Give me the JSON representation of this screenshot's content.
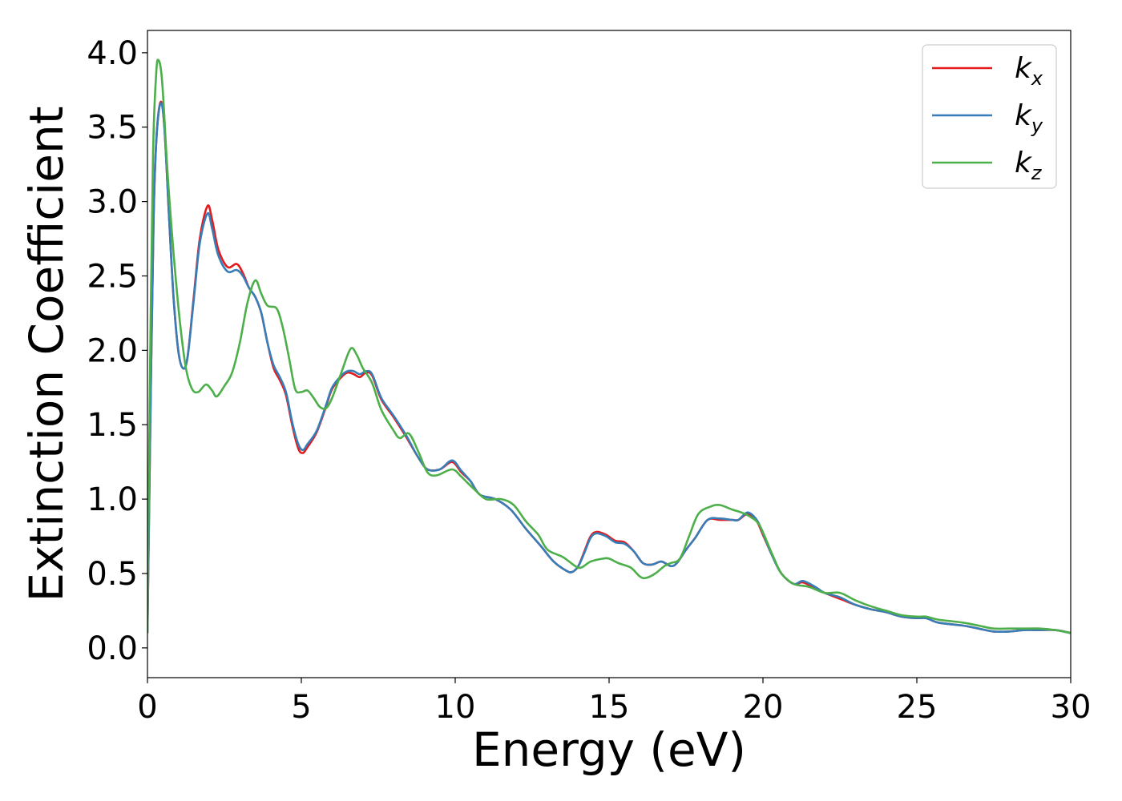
{
  "chart_data": {
    "type": "line",
    "title": "",
    "xlabel": "Energy (eV)",
    "ylabel": "Extinction Coefficient",
    "xlim": [
      0,
      30
    ],
    "ylim": [
      -0.2,
      4.15
    ],
    "xticks": [
      0,
      5,
      10,
      15,
      20,
      25,
      30
    ],
    "xtick_labels": [
      "0",
      "5",
      "10",
      "15",
      "20",
      "25",
      "30"
    ],
    "yticks": [
      0.0,
      0.5,
      1.0,
      1.5,
      2.0,
      2.5,
      3.0,
      3.5,
      4.0
    ],
    "ytick_labels": [
      "0.0",
      "0.5",
      "1.0",
      "1.5",
      "2.0",
      "2.5",
      "3.0",
      "3.5",
      "4.0"
    ],
    "grid": false,
    "legend_position": "top-right",
    "series": [
      {
        "name": "k_x",
        "label_main": "k",
        "label_sub": "x",
        "color": "#e41a1c",
        "points": [
          [
            0,
            0.1
          ],
          [
            0.1,
            1.6
          ],
          [
            0.2,
            2.9
          ],
          [
            0.3,
            3.45
          ],
          [
            0.43,
            3.67
          ],
          [
            0.55,
            3.5
          ],
          [
            0.7,
            2.9
          ],
          [
            0.85,
            2.35
          ],
          [
            1.0,
            2.0
          ],
          [
            1.15,
            1.88
          ],
          [
            1.3,
            1.95
          ],
          [
            1.5,
            2.35
          ],
          [
            1.7,
            2.75
          ],
          [
            1.95,
            2.97
          ],
          [
            2.1,
            2.88
          ],
          [
            2.3,
            2.68
          ],
          [
            2.6,
            2.56
          ],
          [
            2.9,
            2.58
          ],
          [
            3.1,
            2.52
          ],
          [
            3.3,
            2.42
          ],
          [
            3.5,
            2.36
          ],
          [
            3.7,
            2.25
          ],
          [
            3.9,
            2.05
          ],
          [
            4.1,
            1.88
          ],
          [
            4.3,
            1.8
          ],
          [
            4.5,
            1.7
          ],
          [
            4.7,
            1.5
          ],
          [
            4.9,
            1.34
          ],
          [
            5.05,
            1.31
          ],
          [
            5.2,
            1.35
          ],
          [
            5.5,
            1.45
          ],
          [
            5.8,
            1.62
          ],
          [
            6.0,
            1.74
          ],
          [
            6.3,
            1.82
          ],
          [
            6.5,
            1.85
          ],
          [
            6.7,
            1.84
          ],
          [
            6.9,
            1.82
          ],
          [
            7.1,
            1.85
          ],
          [
            7.3,
            1.83
          ],
          [
            7.6,
            1.67
          ],
          [
            8.0,
            1.55
          ],
          [
            8.4,
            1.42
          ],
          [
            8.8,
            1.28
          ],
          [
            9.1,
            1.2
          ],
          [
            9.5,
            1.2
          ],
          [
            9.9,
            1.25
          ],
          [
            10.2,
            1.18
          ],
          [
            10.5,
            1.12
          ],
          [
            10.8,
            1.03
          ],
          [
            11.3,
            1.0
          ],
          [
            11.8,
            0.93
          ],
          [
            12.3,
            0.8
          ],
          [
            12.8,
            0.68
          ],
          [
            13.2,
            0.58
          ],
          [
            13.6,
            0.52
          ],
          [
            13.8,
            0.51
          ],
          [
            14.0,
            0.55
          ],
          [
            14.2,
            0.65
          ],
          [
            14.4,
            0.75
          ],
          [
            14.6,
            0.78
          ],
          [
            14.9,
            0.76
          ],
          [
            15.2,
            0.72
          ],
          [
            15.5,
            0.71
          ],
          [
            15.8,
            0.65
          ],
          [
            16.1,
            0.57
          ],
          [
            16.4,
            0.56
          ],
          [
            16.7,
            0.58
          ],
          [
            17.0,
            0.55
          ],
          [
            17.2,
            0.57
          ],
          [
            17.5,
            0.66
          ],
          [
            17.8,
            0.74
          ],
          [
            18.2,
            0.86
          ],
          [
            18.6,
            0.86
          ],
          [
            19.0,
            0.86
          ],
          [
            19.2,
            0.86
          ],
          [
            19.5,
            0.9
          ],
          [
            19.8,
            0.85
          ],
          [
            20.0,
            0.76
          ],
          [
            20.3,
            0.62
          ],
          [
            20.6,
            0.5
          ],
          [
            21.0,
            0.43
          ],
          [
            21.3,
            0.44
          ],
          [
            21.7,
            0.4
          ],
          [
            22.0,
            0.37
          ],
          [
            22.5,
            0.33
          ],
          [
            23.0,
            0.29
          ],
          [
            23.5,
            0.26
          ],
          [
            24.0,
            0.24
          ],
          [
            24.5,
            0.21
          ],
          [
            25.0,
            0.2
          ],
          [
            25.3,
            0.2
          ],
          [
            25.7,
            0.17
          ],
          [
            26.5,
            0.15
          ],
          [
            27.0,
            0.13
          ],
          [
            27.5,
            0.11
          ],
          [
            28.0,
            0.11
          ],
          [
            28.5,
            0.12
          ],
          [
            29.0,
            0.12
          ],
          [
            29.5,
            0.12
          ],
          [
            30.0,
            0.1
          ]
        ]
      },
      {
        "name": "k_y",
        "label_main": "k",
        "label_sub": "y",
        "color": "#377eb8",
        "points": [
          [
            0,
            0.1
          ],
          [
            0.1,
            1.6
          ],
          [
            0.2,
            2.9
          ],
          [
            0.3,
            3.45
          ],
          [
            0.43,
            3.66
          ],
          [
            0.55,
            3.5
          ],
          [
            0.7,
            2.9
          ],
          [
            0.85,
            2.35
          ],
          [
            1.0,
            2.0
          ],
          [
            1.15,
            1.88
          ],
          [
            1.3,
            1.95
          ],
          [
            1.5,
            2.33
          ],
          [
            1.7,
            2.72
          ],
          [
            1.95,
            2.92
          ],
          [
            2.1,
            2.82
          ],
          [
            2.3,
            2.64
          ],
          [
            2.6,
            2.53
          ],
          [
            2.9,
            2.54
          ],
          [
            3.1,
            2.5
          ],
          [
            3.3,
            2.42
          ],
          [
            3.5,
            2.36
          ],
          [
            3.7,
            2.25
          ],
          [
            3.9,
            2.05
          ],
          [
            4.1,
            1.9
          ],
          [
            4.3,
            1.82
          ],
          [
            4.5,
            1.72
          ],
          [
            4.7,
            1.52
          ],
          [
            4.9,
            1.37
          ],
          [
            5.05,
            1.33
          ],
          [
            5.2,
            1.37
          ],
          [
            5.5,
            1.46
          ],
          [
            5.8,
            1.63
          ],
          [
            6.0,
            1.75
          ],
          [
            6.3,
            1.83
          ],
          [
            6.5,
            1.86
          ],
          [
            6.7,
            1.86
          ],
          [
            6.9,
            1.84
          ],
          [
            7.1,
            1.86
          ],
          [
            7.3,
            1.84
          ],
          [
            7.6,
            1.68
          ],
          [
            8.0,
            1.56
          ],
          [
            8.4,
            1.43
          ],
          [
            8.8,
            1.28
          ],
          [
            9.1,
            1.2
          ],
          [
            9.5,
            1.2
          ],
          [
            9.9,
            1.26
          ],
          [
            10.2,
            1.19
          ],
          [
            10.5,
            1.12
          ],
          [
            10.8,
            1.03
          ],
          [
            11.3,
            1.0
          ],
          [
            11.8,
            0.93
          ],
          [
            12.3,
            0.8
          ],
          [
            12.8,
            0.68
          ],
          [
            13.2,
            0.58
          ],
          [
            13.6,
            0.52
          ],
          [
            13.8,
            0.51
          ],
          [
            14.0,
            0.55
          ],
          [
            14.2,
            0.64
          ],
          [
            14.4,
            0.74
          ],
          [
            14.6,
            0.77
          ],
          [
            14.9,
            0.75
          ],
          [
            15.2,
            0.71
          ],
          [
            15.5,
            0.7
          ],
          [
            15.8,
            0.65
          ],
          [
            16.1,
            0.57
          ],
          [
            16.4,
            0.56
          ],
          [
            16.7,
            0.58
          ],
          [
            17.0,
            0.55
          ],
          [
            17.2,
            0.57
          ],
          [
            17.5,
            0.66
          ],
          [
            17.8,
            0.74
          ],
          [
            18.2,
            0.86
          ],
          [
            18.6,
            0.87
          ],
          [
            19.0,
            0.86
          ],
          [
            19.2,
            0.86
          ],
          [
            19.5,
            0.91
          ],
          [
            19.8,
            0.86
          ],
          [
            20.0,
            0.77
          ],
          [
            20.3,
            0.62
          ],
          [
            20.6,
            0.5
          ],
          [
            21.0,
            0.43
          ],
          [
            21.3,
            0.45
          ],
          [
            21.7,
            0.41
          ],
          [
            22.0,
            0.37
          ],
          [
            22.5,
            0.34
          ],
          [
            23.0,
            0.29
          ],
          [
            23.5,
            0.26
          ],
          [
            24.0,
            0.24
          ],
          [
            24.5,
            0.21
          ],
          [
            25.0,
            0.2
          ],
          [
            25.3,
            0.2
          ],
          [
            25.7,
            0.17
          ],
          [
            26.5,
            0.15
          ],
          [
            27.0,
            0.13
          ],
          [
            27.5,
            0.11
          ],
          [
            28.0,
            0.11
          ],
          [
            28.5,
            0.12
          ],
          [
            29.0,
            0.12
          ],
          [
            29.5,
            0.12
          ],
          [
            30.0,
            0.1
          ]
        ]
      },
      {
        "name": "k_z",
        "label_main": "k",
        "label_sub": "z",
        "color": "#4daf4a",
        "points": [
          [
            0,
            0.1
          ],
          [
            0.08,
            1.8
          ],
          [
            0.18,
            3.3
          ],
          [
            0.28,
            3.85
          ],
          [
            0.36,
            3.95
          ],
          [
            0.48,
            3.8
          ],
          [
            0.65,
            3.2
          ],
          [
            0.85,
            2.65
          ],
          [
            1.05,
            2.2
          ],
          [
            1.25,
            1.88
          ],
          [
            1.45,
            1.74
          ],
          [
            1.65,
            1.72
          ],
          [
            1.9,
            1.77
          ],
          [
            2.1,
            1.73
          ],
          [
            2.25,
            1.69
          ],
          [
            2.5,
            1.76
          ],
          [
            2.75,
            1.85
          ],
          [
            3.0,
            2.05
          ],
          [
            3.25,
            2.32
          ],
          [
            3.5,
            2.47
          ],
          [
            3.7,
            2.38
          ],
          [
            3.9,
            2.3
          ],
          [
            4.2,
            2.28
          ],
          [
            4.4,
            2.15
          ],
          [
            4.6,
            1.95
          ],
          [
            4.8,
            1.74
          ],
          [
            5.0,
            1.72
          ],
          [
            5.2,
            1.73
          ],
          [
            5.4,
            1.68
          ],
          [
            5.6,
            1.62
          ],
          [
            5.8,
            1.61
          ],
          [
            6.0,
            1.68
          ],
          [
            6.3,
            1.85
          ],
          [
            6.6,
            2.01
          ],
          [
            6.8,
            1.97
          ],
          [
            7.0,
            1.88
          ],
          [
            7.3,
            1.78
          ],
          [
            7.6,
            1.6
          ],
          [
            8.0,
            1.46
          ],
          [
            8.2,
            1.41
          ],
          [
            8.5,
            1.44
          ],
          [
            8.8,
            1.32
          ],
          [
            9.1,
            1.18
          ],
          [
            9.4,
            1.16
          ],
          [
            9.9,
            1.2
          ],
          [
            10.2,
            1.15
          ],
          [
            10.6,
            1.07
          ],
          [
            11.0,
            1.0
          ],
          [
            11.5,
            1.0
          ],
          [
            11.9,
            0.96
          ],
          [
            12.3,
            0.85
          ],
          [
            12.7,
            0.76
          ],
          [
            13.0,
            0.66
          ],
          [
            13.5,
            0.61
          ],
          [
            13.9,
            0.55
          ],
          [
            14.1,
            0.54
          ],
          [
            14.4,
            0.58
          ],
          [
            14.8,
            0.6
          ],
          [
            15.0,
            0.6
          ],
          [
            15.3,
            0.57
          ],
          [
            15.7,
            0.54
          ],
          [
            16.0,
            0.48
          ],
          [
            16.2,
            0.47
          ],
          [
            16.5,
            0.5
          ],
          [
            16.8,
            0.55
          ],
          [
            17.0,
            0.57
          ],
          [
            17.3,
            0.6
          ],
          [
            17.6,
            0.75
          ],
          [
            17.9,
            0.9
          ],
          [
            18.3,
            0.95
          ],
          [
            18.6,
            0.96
          ],
          [
            19.0,
            0.93
          ],
          [
            19.3,
            0.91
          ],
          [
            19.6,
            0.88
          ],
          [
            19.9,
            0.82
          ],
          [
            20.3,
            0.63
          ],
          [
            20.6,
            0.5
          ],
          [
            21.0,
            0.43
          ],
          [
            21.5,
            0.41
          ],
          [
            22.0,
            0.37
          ],
          [
            22.5,
            0.37
          ],
          [
            23.0,
            0.32
          ],
          [
            23.5,
            0.28
          ],
          [
            24.0,
            0.25
          ],
          [
            24.5,
            0.22
          ],
          [
            25.0,
            0.21
          ],
          [
            25.3,
            0.21
          ],
          [
            25.7,
            0.19
          ],
          [
            26.5,
            0.17
          ],
          [
            27.0,
            0.15
          ],
          [
            27.5,
            0.13
          ],
          [
            28.0,
            0.13
          ],
          [
            28.5,
            0.13
          ],
          [
            29.0,
            0.13
          ],
          [
            29.5,
            0.12
          ],
          [
            30.0,
            0.1
          ]
        ]
      }
    ]
  }
}
